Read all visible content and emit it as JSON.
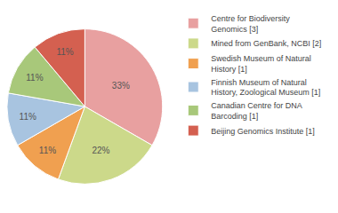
{
  "chart_data": {
    "type": "pie",
    "categories": [
      "Centre for Biodiversity\nGenomics [3]",
      "Mined from GenBank, NCBI [2]",
      "Swedish Museum of Natural\nHistory [1]",
      "Finnish Museum of Natural\nHistory, Zoological Museum [1]",
      "Canadian Centre for DNA\nBarcoding [1]",
      "Beijing Genomics Institute [1]"
    ],
    "values": [
      33,
      22,
      11,
      11,
      11,
      11
    ],
    "value_labels": [
      "33%",
      "22%",
      "11%",
      "11%",
      "11%",
      "11%"
    ],
    "colors": [
      "#e8a0a0",
      "#ccd98a",
      "#f0a050",
      "#a8c4e0",
      "#a8c87a",
      "#d46050"
    ],
    "data_labels": true,
    "legend": "upper right"
  }
}
